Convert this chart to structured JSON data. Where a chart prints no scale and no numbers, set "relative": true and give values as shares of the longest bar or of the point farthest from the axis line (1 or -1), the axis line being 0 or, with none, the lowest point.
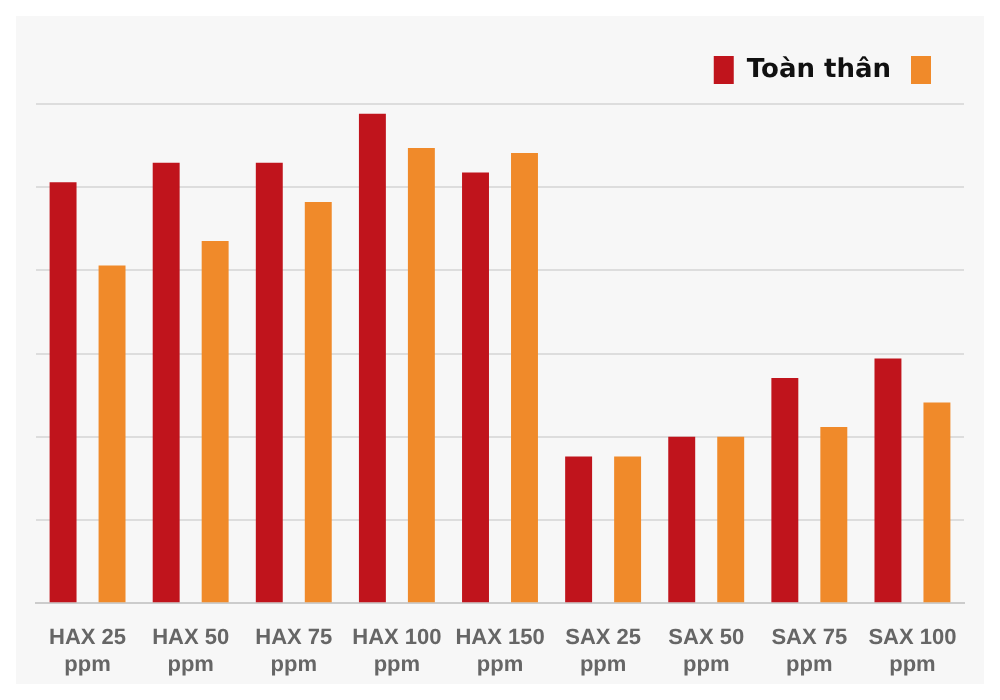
{
  "chart_data": {
    "type": "bar",
    "relative": true,
    "categories": [
      "HAX 25 ppm",
      "HAX 50 ppm",
      "HAX 75 ppm",
      "HAX 100 ppm",
      "HAX 150 ppm",
      "SAX 25 ppm",
      "SAX 50 ppm",
      "SAX 75 ppm",
      "SAX 100 ppm"
    ],
    "series": [
      {
        "name": "Toàn thân",
        "color": "#c0141c",
        "values": [
          0.86,
          0.9,
          0.9,
          1.0,
          0.88,
          0.3,
          0.34,
          0.46,
          0.5
        ]
      },
      {
        "color": "#f08a2a",
        "values": [
          0.69,
          0.74,
          0.82,
          0.93,
          0.92,
          0.3,
          0.34,
          0.36,
          0.41
        ]
      }
    ],
    "grid": "y",
    "legend": "top right"
  }
}
